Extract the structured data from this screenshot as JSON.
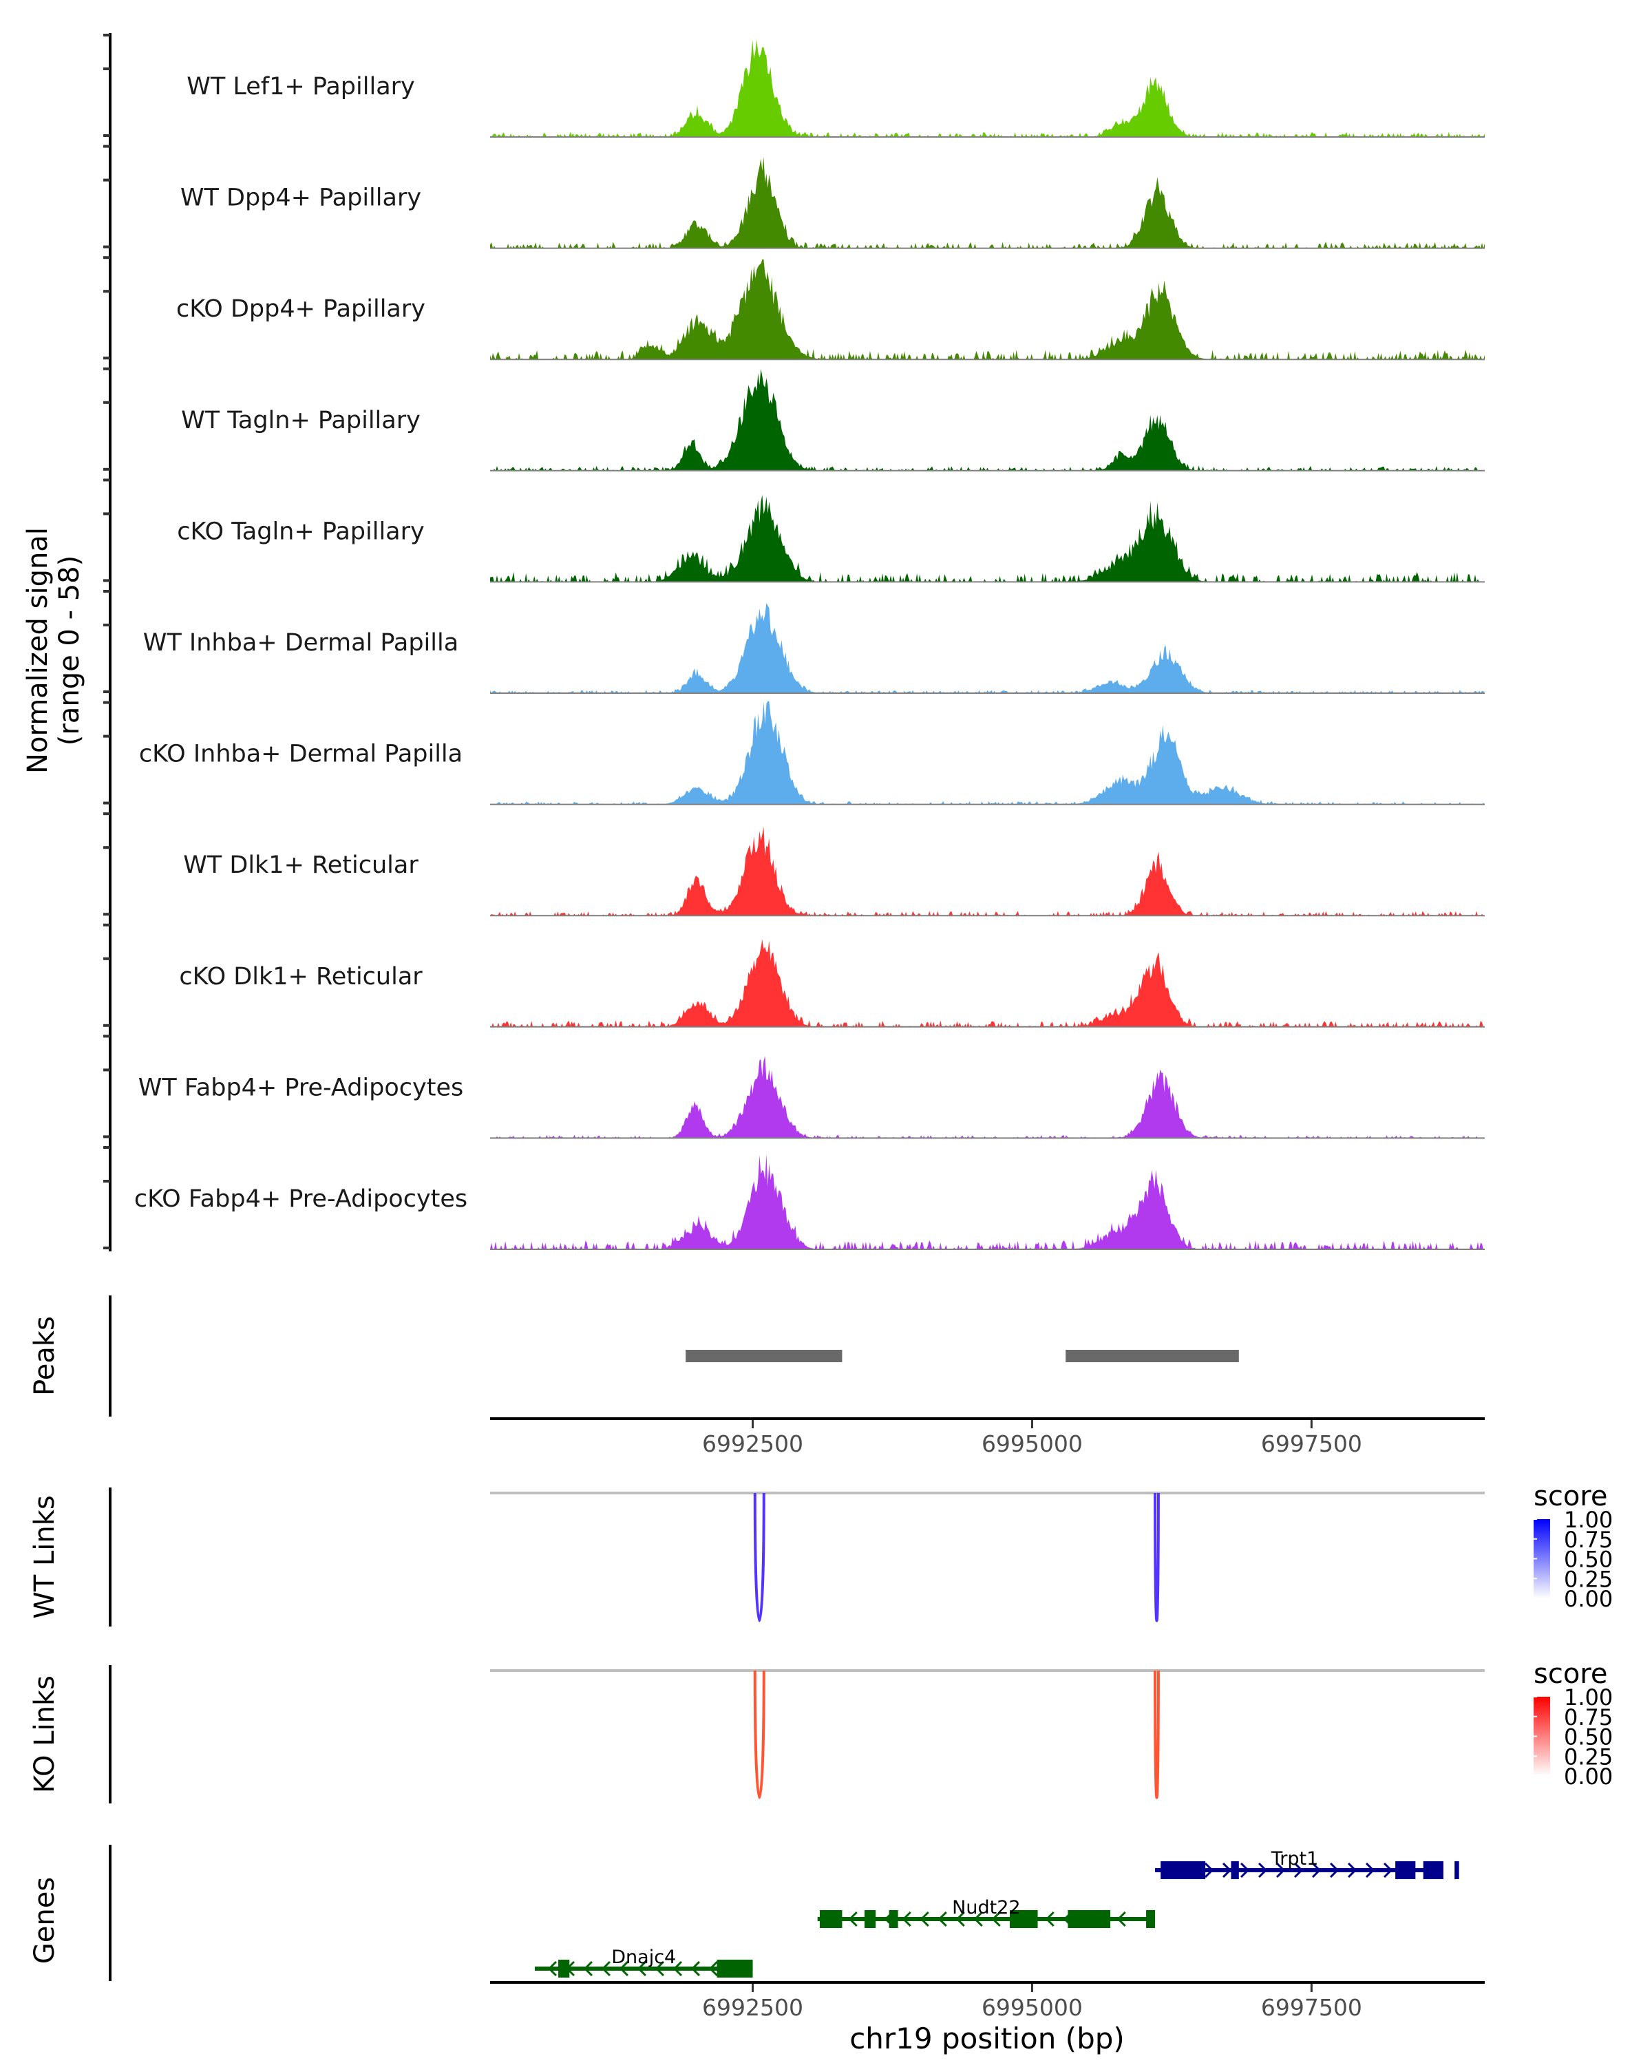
{
  "chart_data": {
    "type": "area",
    "title": "",
    "region": {
      "chromosome": "chr19",
      "start": 6990150,
      "end": 6999050
    },
    "xlabel": "chr19 position (bp)",
    "ylabel": "Normalized signal",
    "ylabel_sub": "(range 0 - 58)",
    "ylim": [
      0,
      58
    ],
    "x_ticks": [
      6992500,
      6995000,
      6997500
    ],
    "x_tick_labels": [
      "6992500",
      "6995000",
      "6997500"
    ],
    "coverage_tracks": [
      {
        "name": "WT Lef1+ Papillary",
        "color": "#66CC00",
        "peaks": [
          {
            "center": 6992000,
            "height": 13,
            "width": 90
          },
          {
            "center": 6992550,
            "height": 50,
            "width": 130
          },
          {
            "center": 6996100,
            "height": 29,
            "width": 110
          },
          {
            "center": 6995800,
            "height": 7,
            "width": 100
          }
        ],
        "background": 1.5
      },
      {
        "name": "WT Dpp4+ Papillary",
        "color": "#448A00",
        "peaks": [
          {
            "center": 6992000,
            "height": 14,
            "width": 90
          },
          {
            "center": 6992580,
            "height": 42,
            "width": 120
          },
          {
            "center": 6996120,
            "height": 32,
            "width": 110
          }
        ],
        "background": 2.0
      },
      {
        "name": "cKO Dpp4+ Papillary",
        "color": "#448A00",
        "peaks": [
          {
            "center": 6991600,
            "height": 8,
            "width": 80
          },
          {
            "center": 6992000,
            "height": 20,
            "width": 110
          },
          {
            "center": 6992560,
            "height": 48,
            "width": 170
          },
          {
            "center": 6995800,
            "height": 10,
            "width": 140
          },
          {
            "center": 6996150,
            "height": 36,
            "width": 130
          }
        ],
        "background": 3.0
      },
      {
        "name": "WT Tagln+ Papillary",
        "color": "#006400",
        "peaks": [
          {
            "center": 6991950,
            "height": 16,
            "width": 70
          },
          {
            "center": 6992560,
            "height": 53,
            "width": 150
          },
          {
            "center": 6996120,
            "height": 29,
            "width": 110
          },
          {
            "center": 6995800,
            "height": 8,
            "width": 80
          }
        ],
        "background": 1.5
      },
      {
        "name": "cKO Tagln+ Papillary",
        "color": "#006400",
        "peaks": [
          {
            "center": 6991950,
            "height": 13,
            "width": 120
          },
          {
            "center": 6992600,
            "height": 40,
            "width": 150
          },
          {
            "center": 6995800,
            "height": 10,
            "width": 160
          },
          {
            "center": 6996120,
            "height": 35,
            "width": 140
          }
        ],
        "background": 3.0
      },
      {
        "name": "WT Inhba+ Dermal Papilla",
        "color": "#5DADEC",
        "peaks": [
          {
            "center": 6992000,
            "height": 11,
            "width": 80
          },
          {
            "center": 6992600,
            "height": 44,
            "width": 150
          },
          {
            "center": 6995700,
            "height": 6,
            "width": 120
          },
          {
            "center": 6996200,
            "height": 22,
            "width": 130
          }
        ],
        "background": 1.0
      },
      {
        "name": "cKO Inhba+ Dermal Papilla",
        "color": "#5DADEC",
        "peaks": [
          {
            "center": 6992000,
            "height": 9,
            "width": 110
          },
          {
            "center": 6992620,
            "height": 55,
            "width": 140
          },
          {
            "center": 6995800,
            "height": 13,
            "width": 150
          },
          {
            "center": 6996200,
            "height": 38,
            "width": 120
          },
          {
            "center": 6996700,
            "height": 9,
            "width": 160
          }
        ],
        "background": 1.0
      },
      {
        "name": "WT Dlk1+ Reticular",
        "color": "#FF3333",
        "peaks": [
          {
            "center": 6992000,
            "height": 19,
            "width": 80
          },
          {
            "center": 6992560,
            "height": 44,
            "width": 130
          },
          {
            "center": 6996120,
            "height": 29,
            "width": 100
          }
        ],
        "background": 1.5
      },
      {
        "name": "cKO Dlk1+ Reticular",
        "color": "#FF3333",
        "peaks": [
          {
            "center": 6992000,
            "height": 13,
            "width": 100
          },
          {
            "center": 6992600,
            "height": 43,
            "width": 140
          },
          {
            "center": 6995800,
            "height": 7,
            "width": 160
          },
          {
            "center": 6996100,
            "height": 33,
            "width": 120
          }
        ],
        "background": 2.0
      },
      {
        "name": "WT Fabp4+ Pre-Adipocytes",
        "color": "#B23AEE",
        "peaks": [
          {
            "center": 6991980,
            "height": 19,
            "width": 70
          },
          {
            "center": 6992600,
            "height": 39,
            "width": 140
          },
          {
            "center": 6996150,
            "height": 33,
            "width": 120
          }
        ],
        "background": 1.0
      },
      {
        "name": "cKO Fabp4+ Pre-Adipocytes",
        "color": "#B23AEE",
        "peaks": [
          {
            "center": 6992000,
            "height": 12,
            "width": 120
          },
          {
            "center": 6992620,
            "height": 44,
            "width": 140
          },
          {
            "center": 6995800,
            "height": 10,
            "width": 160
          },
          {
            "center": 6996100,
            "height": 36,
            "width": 120
          }
        ],
        "background": 3.0
      }
    ],
    "peaks_track": {
      "label": "Peaks",
      "color": "#696969",
      "intervals": [
        [
          6991900,
          6993300
        ],
        [
          6995300,
          6996850
        ]
      ]
    },
    "link_tracks": [
      {
        "label": "WT Links",
        "color": "#5533FF",
        "links": [
          {
            "start": 6992520,
            "end": 6992600,
            "score": 0.85
          },
          {
            "start": 6996100,
            "end": 6996130,
            "score": 0.9
          }
        ],
        "legend": {
          "title": "score",
          "ticks": [
            "1.00",
            "0.75",
            "0.50",
            "0.25",
            "0.00"
          ],
          "low_color": "#FFFFFF",
          "high_color": "#0000FF"
        }
      },
      {
        "label": "KO Links",
        "color": "#FF5533",
        "links": [
          {
            "start": 6992520,
            "end": 6992600,
            "score": 0.85
          },
          {
            "start": 6996100,
            "end": 6996130,
            "score": 0.9
          }
        ],
        "legend": {
          "title": "score",
          "ticks": [
            "1.00",
            "0.75",
            "0.50",
            "0.25",
            "0.00"
          ],
          "low_color": "#FFFFFF",
          "high_color": "#FF0000"
        }
      }
    ],
    "genes_track": {
      "label": "Genes",
      "genes": [
        {
          "name": "Trpt1",
          "strand": "+",
          "color": "#00008B",
          "start": 6996100,
          "end": 6998600,
          "row": 0,
          "exons": [
            [
              6996150,
              6996550
            ],
            [
              6996780,
              6996850
            ],
            [
              6998250,
              6998430
            ],
            [
              6998500,
              6998680
            ],
            [
              6998780,
              6998820
            ]
          ]
        },
        {
          "name": "Nudt22",
          "strand": "-",
          "color": "#006400",
          "start": 6993080,
          "end": 6996100,
          "row": 1,
          "exons": [
            [
              6993100,
              6993300
            ],
            [
              6993500,
              6993600
            ],
            [
              6993720,
              6993800
            ],
            [
              6994800,
              6995050
            ],
            [
              6995320,
              6995700
            ],
            [
              6996020,
              6996100
            ]
          ]
        },
        {
          "name": "Dnajc4",
          "strand": "-",
          "color": "#006400",
          "start": 6990550,
          "end": 6992500,
          "row": 2,
          "exons": [
            [
              6990760,
              6990860
            ],
            [
              6992180,
              6992500
            ]
          ]
        }
      ]
    }
  }
}
